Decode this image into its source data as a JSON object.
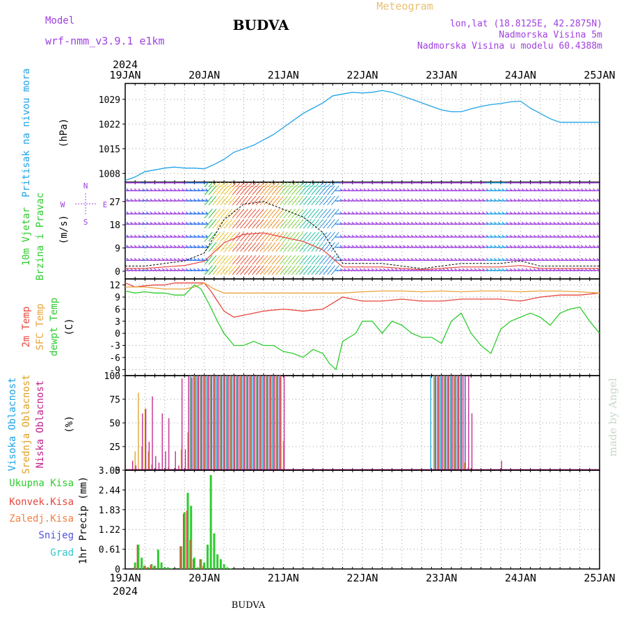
{
  "header": {
    "model_label": "Model",
    "model_name": "wrf-nmm_v3.9.1 e1km",
    "title": "BUDVA",
    "meteogram_label": "Meteogram",
    "lonlat": "lon,lat (18.8125E, 42.2875N)",
    "elevation": "Nadmorska Visina 5m",
    "model_elevation": "Nadmorska Visina u modelu 60.4388m",
    "top_year": "2024",
    "bottom_year": "2024",
    "footer_title": "BUDVA",
    "watermark": "made by Angel"
  },
  "colors": {
    "pressure": "#1fa3e6",
    "t2m": "#e8463c",
    "sfc": "#e8a43c",
    "dewpt": "#2ecc2e",
    "cloud_high": "#1fa3e6",
    "cloud_mid": "#e0a020",
    "cloud_low": "#c0208c",
    "precip_total": "#2ecc2e",
    "precip_conv": "#e8463c",
    "precip_frz": "#f08040",
    "snow": "#5050e0",
    "hail": "#30c8c8",
    "wind_label": "#2ecc2e",
    "wind_purple": "#a040e0",
    "model_text": "#a040e0",
    "meteogram_text": "#e8c070",
    "watermark": "#c8d8c8"
  },
  "chart_data": [
    {
      "id": "pressure",
      "type": "line",
      "ylabel": [
        "Pritisak na nivou mora",
        "(hPa)"
      ],
      "yticks": [
        1008,
        1015,
        1022,
        1029
      ],
      "ylim": [
        1005.5,
        1033.5
      ],
      "xticks": [
        "19JAN",
        "20JAN",
        "21JAN",
        "22JAN",
        "23JAN",
        "24JAN",
        "25JAN"
      ],
      "xlim": [
        0,
        144
      ],
      "series": [
        {
          "color": "pressure",
          "x": [
            0,
            3,
            6,
            9,
            12,
            15,
            18,
            21,
            24,
            27,
            30,
            33,
            36,
            39,
            42,
            45,
            48,
            51,
            54,
            57,
            60,
            63,
            66,
            69,
            72,
            75,
            78,
            81,
            84,
            87,
            90,
            93,
            96,
            99,
            102,
            105,
            108,
            111,
            114,
            117,
            120,
            123,
            126,
            129,
            132,
            135,
            138,
            141,
            144
          ],
          "y": [
            1006,
            1007,
            1008.5,
            1009,
            1009.5,
            1009.8,
            1009.5,
            1009.5,
            1009.3,
            1010.5,
            1012,
            1014,
            1015,
            1016,
            1017.5,
            1019,
            1021,
            1023,
            1025,
            1026.5,
            1028,
            1030,
            1030.5,
            1031,
            1030.8,
            1031,
            1031.5,
            1031,
            1030,
            1029,
            1028,
            1027,
            1026,
            1025.5,
            1025.5,
            1026.3,
            1027,
            1027.5,
            1027.8,
            1028.3,
            1028.5,
            1026.5,
            1025,
            1023.5,
            1022.5,
            1022.5,
            1022.5,
            1022.5,
            1022.5
          ]
        }
      ]
    },
    {
      "id": "wind",
      "type": "line",
      "ylabel": [
        "10m Vjetar",
        "Brzina i Pravac",
        "(m/s)"
      ],
      "compass": [
        "N",
        "E",
        "S",
        "W"
      ],
      "yticks": [
        0,
        9,
        18,
        27
      ],
      "ylim": [
        -3,
        34.5
      ],
      "xlim": [
        0,
        144
      ],
      "series": [
        {
          "name": "",
          "color": "t2m",
          "x": [
            0,
            6,
            12,
            18,
            24,
            30,
            36,
            42,
            48,
            54,
            60,
            66,
            72,
            78,
            84,
            90,
            96,
            102,
            108,
            114,
            120,
            126,
            132,
            138,
            144
          ],
          "y": [
            2,
            2,
            3,
            4,
            7,
            20,
            26,
            27,
            24,
            21,
            15,
            3,
            3,
            3,
            2,
            1,
            2,
            3,
            3,
            3,
            4,
            2,
            2,
            2,
            2
          ]
        }
      ]
    },
    {
      "id": "temperature",
      "type": "line",
      "ylabel": [
        "2m Temp",
        "SFC Temp",
        "dewpt Temp",
        "(C)"
      ],
      "yticks": [
        -9,
        -6,
        -3,
        0,
        3,
        6,
        9,
        12
      ],
      "ylim": [
        -10.5,
        13.5
      ],
      "xlim": [
        0,
        144
      ],
      "series": [
        {
          "name": "2m Temp",
          "color": "t2m",
          "x": [
            0,
            3,
            6,
            9,
            12,
            15,
            18,
            21,
            24,
            26,
            28,
            30,
            33,
            36,
            39,
            42,
            48,
            54,
            60,
            63,
            66,
            69,
            72,
            78,
            84,
            90,
            96,
            102,
            108,
            114,
            120,
            126,
            132,
            138,
            144
          ],
          "y": [
            12.5,
            11.5,
            11.8,
            12,
            12,
            12.5,
            12.5,
            12.5,
            12.5,
            10.5,
            8,
            5.5,
            4,
            4.5,
            5,
            5.5,
            6,
            5.5,
            6,
            7.5,
            9,
            8.5,
            8,
            8,
            8.5,
            8,
            8,
            8.5,
            8.5,
            8.5,
            8,
            9,
            9.5,
            9.5,
            10
          ]
        },
        {
          "name": "SFC Temp",
          "color": "sfc",
          "x": [
            0,
            6,
            12,
            18,
            21,
            24,
            27,
            30,
            36,
            42,
            48,
            54,
            60,
            66,
            72,
            78,
            84,
            90,
            96,
            102,
            108,
            114,
            120,
            126,
            132,
            138,
            144
          ],
          "y": [
            11.5,
            11.5,
            11,
            11,
            11.5,
            12.5,
            11,
            10,
            10,
            10,
            10,
            10,
            10,
            10,
            10.3,
            10.5,
            10.5,
            10.3,
            10.5,
            10.3,
            10.5,
            10.5,
            10.3,
            10.5,
            10.5,
            10.3,
            10
          ]
        },
        {
          "name": "dewpt Temp",
          "color": "dewpt",
          "x": [
            0,
            3,
            6,
            9,
            12,
            15,
            18,
            21,
            23,
            25,
            28,
            30,
            33,
            36,
            39,
            42,
            45,
            48,
            51,
            54,
            57,
            60,
            62,
            64,
            66,
            68,
            70,
            72,
            75,
            78,
            81,
            84,
            87,
            90,
            93,
            96,
            99,
            102,
            105,
            108,
            111,
            114,
            117,
            120,
            123,
            126,
            129,
            132,
            135,
            138,
            141,
            144
          ],
          "y": [
            10.5,
            10,
            10.3,
            10,
            10,
            9.5,
            9.5,
            12,
            11,
            8,
            3,
            0,
            -3,
            -3,
            -2,
            -3,
            -3,
            -4.5,
            -5,
            -6,
            -4,
            -5,
            -7.5,
            -9,
            -2,
            -1,
            0,
            3,
            3,
            0,
            3,
            2,
            0,
            -1,
            -1,
            -2.5,
            3,
            5,
            0,
            -3,
            -5,
            1,
            3,
            4,
            5,
            4,
            2,
            5,
            6,
            6.5,
            3,
            0
          ]
        }
      ]
    },
    {
      "id": "clouds",
      "type": "bar",
      "ylabel": [
        "Visoka Oblacnost",
        "Srednja Oblacnost",
        "Niska Oblacnost",
        "(%)"
      ],
      "yticks": [
        0,
        25,
        50,
        75,
        100
      ],
      "ylim": [
        0,
        100
      ],
      "xlim": [
        0,
        144
      ],
      "series": [
        {
          "name": "Visoka Oblacnost",
          "color": "cloud_high",
          "x": [
            20,
            21,
            22,
            23,
            24,
            25,
            26,
            27,
            28,
            29,
            30,
            31,
            32,
            33,
            34,
            35,
            36,
            37,
            38,
            39,
            40,
            41,
            42,
            43,
            44,
            45,
            46,
            47,
            93,
            94,
            95,
            96,
            97,
            98,
            99,
            100,
            101,
            102,
            103
          ],
          "values": [
            100,
            100,
            100,
            100,
            100,
            100,
            100,
            100,
            100,
            100,
            100,
            100,
            100,
            100,
            100,
            100,
            100,
            100,
            100,
            100,
            100,
            100,
            100,
            100,
            100,
            100,
            100,
            100,
            100,
            100,
            100,
            100,
            100,
            100,
            100,
            100,
            100,
            100,
            100
          ]
        },
        {
          "name": "Srednja Oblacnost",
          "color": "cloud_mid",
          "x": [
            3,
            4,
            5,
            6,
            7,
            8,
            13,
            17,
            19,
            20,
            21,
            22,
            23,
            24,
            25,
            26,
            27,
            28,
            29,
            30,
            31,
            32,
            33,
            34,
            35,
            36,
            37,
            38,
            39,
            40,
            41,
            42,
            43,
            44,
            45,
            46,
            47,
            48,
            94,
            95,
            96,
            97,
            98,
            99,
            100,
            101,
            102,
            103,
            104
          ],
          "values": [
            20,
            82,
            25,
            65,
            20,
            6,
            3,
            22,
            40,
            100,
            100,
            100,
            100,
            100,
            100,
            100,
            100,
            100,
            100,
            100,
            100,
            100,
            100,
            100,
            100,
            100,
            100,
            100,
            100,
            100,
            100,
            100,
            100,
            100,
            100,
            100,
            100,
            31,
            100,
            100,
            100,
            100,
            100,
            100,
            100,
            100,
            100,
            8,
            3
          ]
        },
        {
          "name": "Niska Oblacnost",
          "color": "cloud_low",
          "x": [
            2,
            3,
            5,
            6,
            7,
            8,
            9,
            10,
            11,
            12,
            13,
            15,
            16,
            17,
            18,
            19,
            20,
            21,
            22,
            23,
            24,
            25,
            26,
            27,
            28,
            29,
            30,
            31,
            32,
            33,
            34,
            35,
            36,
            37,
            38,
            39,
            40,
            41,
            42,
            43,
            44,
            45,
            46,
            47,
            48,
            94,
            95,
            96,
            97,
            98,
            99,
            100,
            101,
            102,
            103,
            104,
            105,
            114
          ],
          "values": [
            10,
            5,
            60,
            65,
            30,
            78,
            15,
            8,
            60,
            20,
            55,
            20,
            5,
            97,
            22,
            100,
            98,
            100,
            100,
            100,
            100,
            100,
            100,
            100,
            100,
            100,
            100,
            100,
            100,
            100,
            100,
            100,
            100,
            100,
            100,
            100,
            100,
            100,
            100,
            100,
            100,
            100,
            100,
            100,
            100,
            100,
            100,
            100,
            100,
            100,
            100,
            100,
            100,
            100,
            100,
            100,
            60,
            10
          ]
        }
      ]
    },
    {
      "id": "precip",
      "type": "bar",
      "ylabel": [
        "1hr Precip (mm)"
      ],
      "legend": [
        "Ukupna Kisa",
        "Konvek.Kisa",
        "Zaledj.Kisa",
        "Snijeg",
        "Grad"
      ],
      "yticks": [
        0,
        0.61,
        1.22,
        1.83,
        2.44,
        3.05
      ],
      "ylim": [
        0,
        3.05
      ],
      "xlim": [
        0,
        144
      ],
      "xticks": [
        "19JAN",
        "20JAN",
        "21JAN",
        "22JAN",
        "23JAN",
        "24JAN",
        "25JAN"
      ],
      "series": [
        {
          "name": "Ukupna Kisa",
          "color": "precip_total",
          "x": [
            3,
            4,
            5,
            6,
            7,
            8,
            9,
            10,
            11,
            12,
            13,
            14,
            17,
            18,
            19,
            20,
            21,
            22,
            23,
            24,
            25,
            26,
            27,
            28,
            29,
            30,
            31,
            32
          ],
          "values": [
            0.2,
            0.75,
            0.35,
            0.1,
            0.05,
            0.15,
            0.1,
            0.6,
            0.2,
            0.05,
            0.05,
            0.02,
            0.7,
            1.75,
            2.35,
            1.95,
            0.35,
            0.05,
            0.3,
            0.2,
            0.75,
            2.9,
            1.1,
            0.45,
            0.3,
            0.15,
            0.05,
            0.02
          ]
        },
        {
          "name": "Konvek.Kisa",
          "color": "precip_conv",
          "x": [
            3,
            4,
            6,
            7,
            8,
            9,
            17,
            18,
            19,
            20,
            21,
            23,
            24
          ],
          "values": [
            0.05,
            0.75,
            0.1,
            0.05,
            0.12,
            0.08,
            0.7,
            1.7,
            1.8,
            0.9,
            0.3,
            0.3,
            0.1
          ]
        }
      ]
    }
  ]
}
